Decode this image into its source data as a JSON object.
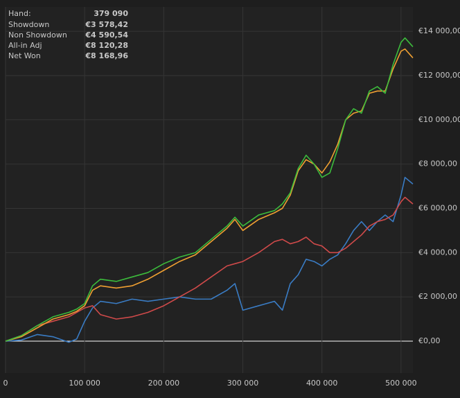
{
  "chart_data": {
    "type": "line",
    "hover": {
      "label": "Hand:",
      "value": "379 090"
    },
    "x": [
      0,
      20000,
      40000,
      60000,
      80000,
      90000,
      100000,
      110000,
      120000,
      140000,
      160000,
      180000,
      200000,
      220000,
      240000,
      260000,
      280000,
      290000,
      300000,
      320000,
      340000,
      350000,
      360000,
      370000,
      380000,
      390000,
      400000,
      410000,
      420000,
      430000,
      440000,
      450000,
      460000,
      470000,
      480000,
      490000,
      500000,
      505000,
      515000
    ],
    "series": [
      {
        "name": "Showdown",
        "hover_value": "€3 578,42",
        "color": "#3a7cc4",
        "values": [
          0,
          50,
          300,
          200,
          -50,
          100,
          900,
          1500,
          1800,
          1700,
          1900,
          1800,
          1900,
          2000,
          1900,
          1900,
          2300,
          2600,
          1400,
          1600,
          1800,
          1400,
          2600,
          3000,
          3700,
          3600,
          3400,
          3700,
          3900,
          4400,
          5000,
          5400,
          5000,
          5400,
          5700,
          5400,
          6600,
          7400,
          7100
        ]
      },
      {
        "name": "Non Showdown",
        "hover_value": "€4 590,54",
        "color": "#d04a4a",
        "values": [
          0,
          250,
          700,
          900,
          1100,
          1300,
          1500,
          1600,
          1200,
          1000,
          1100,
          1300,
          1600,
          2000,
          2400,
          2900,
          3400,
          3500,
          3600,
          4000,
          4500,
          4600,
          4400,
          4500,
          4700,
          4400,
          4300,
          4000,
          4000,
          4200,
          4500,
          4800,
          5200,
          5400,
          5500,
          5700,
          6300,
          6500,
          6200
        ]
      },
      {
        "name": "All-in Adj",
        "hover_value": "€8 120,28",
        "color": "#f0a032",
        "values": [
          0,
          200,
          600,
          1000,
          1200,
          1350,
          1600,
          2300,
          2500,
          2400,
          2500,
          2800,
          3200,
          3600,
          3900,
          4500,
          5100,
          5500,
          5000,
          5500,
          5800,
          6000,
          6600,
          7700,
          8200,
          8000,
          7600,
          8100,
          8900,
          10000,
          10300,
          10400,
          11200,
          11300,
          11300,
          12300,
          13100,
          13200,
          12800
        ]
      },
      {
        "name": "Net Won",
        "hover_value": "€8 168,96",
        "color": "#3cbc3c",
        "values": [
          0,
          250,
          700,
          1100,
          1300,
          1450,
          1700,
          2500,
          2800,
          2700,
          2900,
          3100,
          3500,
          3800,
          4000,
          4600,
          5200,
          5600,
          5200,
          5700,
          5900,
          6200,
          6700,
          7800,
          8400,
          8000,
          7400,
          7600,
          8700,
          10000,
          10500,
          10300,
          11300,
          11500,
          11200,
          12500,
          13500,
          13700,
          13300
        ]
      }
    ],
    "xlim": [
      0,
      515000
    ],
    "xticks": [
      0,
      {
        "value": 100000,
        "label": "100 000"
      },
      {
        "value": 200000,
        "label": "200 000"
      },
      {
        "value": 300000,
        "label": "300 000"
      },
      {
        "value": 400000,
        "label": "400 000"
      },
      {
        "value": 500000,
        "label": "500 000"
      }
    ],
    "ylim": [
      -1440,
      15100
    ],
    "yticks": [
      {
        "value": 0,
        "label": "€0,00"
      },
      {
        "value": 2000,
        "label": "€2 000,00"
      },
      {
        "value": 4000,
        "label": "€4 000,00"
      },
      {
        "value": 6000,
        "label": "€6 000,00"
      },
      {
        "value": 8000,
        "label": "€8 000,00"
      },
      {
        "value": 10000,
        "label": "€10 000,00"
      },
      {
        "value": 12000,
        "label": "€12 000,00"
      },
      {
        "value": 14000,
        "label": "€14 000,00"
      }
    ],
    "grid": true
  }
}
